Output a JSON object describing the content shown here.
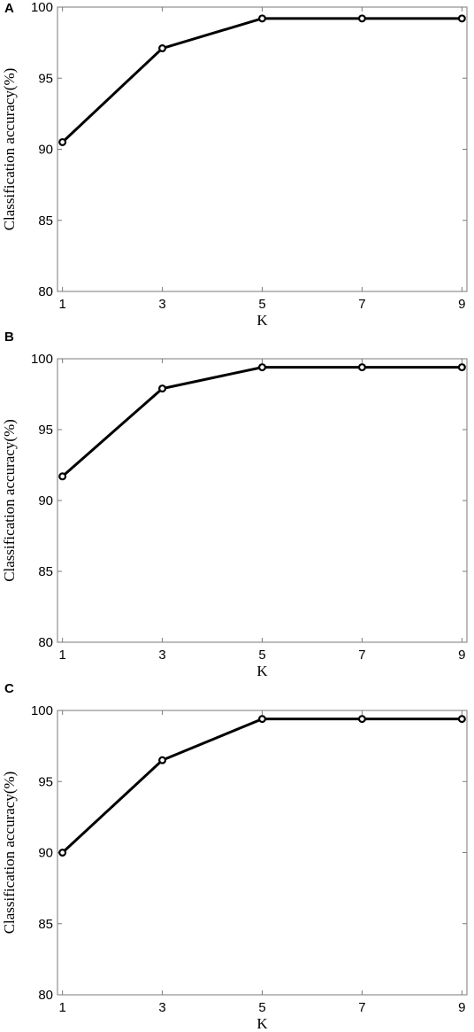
{
  "chart_data": [
    {
      "panel": "A",
      "type": "line",
      "xlabel": "K",
      "ylabel": "Classification accuracy(%)",
      "x": [
        1,
        3,
        5,
        7,
        9
      ],
      "xticks": [
        "1",
        "3",
        "5",
        "7",
        "9"
      ],
      "xlim": [
        0.9,
        9.1
      ],
      "ylim": [
        80,
        100
      ],
      "yticks": [
        "80",
        "85",
        "90",
        "95",
        "100"
      ],
      "grid": false,
      "series": [
        {
          "values": [
            90.5,
            97.1,
            99.2,
            99.2,
            99.2
          ],
          "color": "#000000"
        }
      ]
    },
    {
      "panel": "B",
      "type": "line",
      "xlabel": "K",
      "ylabel": "Classification accuracy(%)",
      "x": [
        1,
        3,
        5,
        7,
        9
      ],
      "xticks": [
        "1",
        "3",
        "5",
        "7",
        "9"
      ],
      "xlim": [
        0.9,
        9.1
      ],
      "ylim": [
        80,
        100
      ],
      "yticks": [
        "80",
        "85",
        "90",
        "95",
        "100"
      ],
      "grid": false,
      "series": [
        {
          "values": [
            91.7,
            97.9,
            99.4,
            99.4,
            99.4
          ],
          "color": "#000000"
        }
      ]
    },
    {
      "panel": "C",
      "type": "line",
      "xlabel": "K",
      "ylabel": "Classification accuracy(%)",
      "x": [
        1,
        3,
        5,
        7,
        9
      ],
      "xticks": [
        "1",
        "3",
        "5",
        "7",
        "9"
      ],
      "xlim": [
        0.9,
        9.1
      ],
      "ylim": [
        80,
        100
      ],
      "yticks": [
        "80",
        "85",
        "90",
        "95",
        "100"
      ],
      "grid": false,
      "series": [
        {
          "values": [
            90.0,
            96.5,
            99.4,
            99.4,
            99.4
          ],
          "color": "#000000"
        }
      ]
    }
  ]
}
